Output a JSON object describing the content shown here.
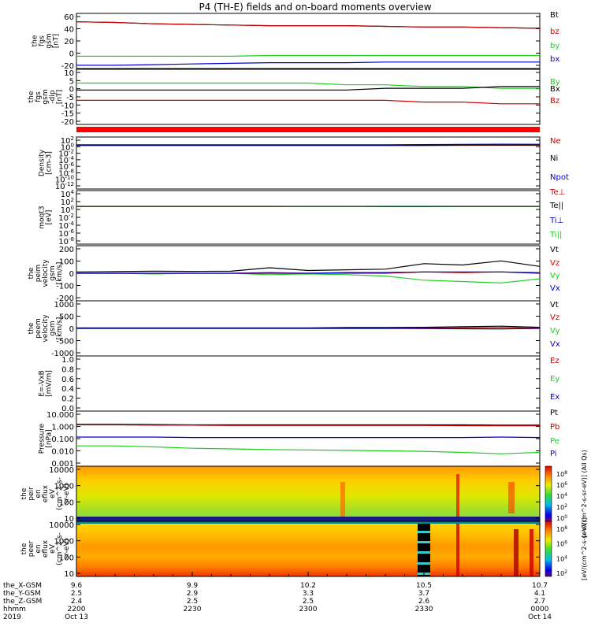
{
  "chart_data": {
    "type": "line",
    "title": "P4 (TH-E) fields and on-board moments overview",
    "panels": [
      {
        "id": "fgs-gsm",
        "ylabel": [
          "the",
          "fgs",
          "gsm",
          "[nT]"
        ],
        "yticks": [
          "60",
          "40",
          "20",
          "0",
          "-20"
        ],
        "ylim": [
          -20,
          65
        ],
        "grid": false,
        "series": [
          {
            "name": "Bt",
            "color": "#000000",
            "values": [
              52,
              51,
              49,
              48,
              47,
              46,
              46,
              46,
              45,
              44,
              44,
              43,
              42
            ]
          },
          {
            "name": "bz",
            "color": "#cc0000",
            "values": [
              52,
              51,
              49,
              48,
              47,
              46,
              46,
              46,
              45,
              44,
              44,
              43,
              42
            ]
          },
          {
            "name": "by",
            "color": "#22cc22",
            "values": [
              -1,
              -1,
              -1,
              -1,
              -1,
              0,
              0,
              0,
              0,
              0,
              0,
              0,
              0
            ]
          },
          {
            "name": "bx",
            "color": "#0000cc",
            "values": [
              -15,
              -15,
              -14,
              -13,
              -12,
              -11,
              -11,
              -11,
              -10,
              -10,
              -10,
              -10,
              -10
            ]
          }
        ]
      },
      {
        "id": "fgs-gsm-deviation",
        "ylabel": [
          "the",
          "fgs",
          "gsm",
          "-dip",
          "[nT]"
        ],
        "yticks": [
          "10",
          "5",
          "0",
          "-5",
          "-10",
          "-15",
          "-20"
        ],
        "ylim": [
          -22,
          10
        ],
        "grid": false,
        "series": [
          {
            "name": "By",
            "color": "#22cc22",
            "values": [
              2,
              2,
              2,
              2,
              2,
              2,
              2,
              1,
              1,
              0,
              0,
              -1,
              -1
            ]
          },
          {
            "name": "Bx",
            "color": "#000000",
            "values": [
              -2,
              -2,
              -2,
              -2,
              -2,
              -2,
              -2,
              -2,
              -1,
              -1,
              -1,
              0,
              0
            ]
          },
          {
            "name": "Bz",
            "color": "#cc0000",
            "values": [
              -8,
              -8,
              -8,
              -8,
              -8,
              -8,
              -8,
              -8,
              -8,
              -9,
              -9,
              -10,
              -10
            ]
          }
        ]
      },
      {
        "id": "density",
        "ylabel": [
          "Density",
          "[cm-3]"
        ],
        "yticks": [
          "10^2",
          "10^0",
          "10^-2",
          "10^-4",
          "10^-6",
          "10^-8",
          "10^-10",
          "10^-12"
        ],
        "ylim": [
          -12,
          2
        ],
        "log": true,
        "grid": false,
        "series": [
          {
            "name": "Ne",
            "color": "#cc0000",
            "values": [
              0.5,
              0.5,
              0.5,
              0.5,
              0.5,
              0.5,
              0.5,
              0.5,
              0.5,
              0.5,
              0.6,
              0.6,
              0.6
            ]
          },
          {
            "name": "Ni",
            "color": "#000000",
            "values": [
              0.6,
              0.6,
              0.6,
              0.6,
              0.6,
              0.6,
              0.6,
              0.6,
              0.6,
              0.6,
              0.7,
              0.7,
              0.7
            ]
          },
          {
            "name": "Npot",
            "color": "#0000cc",
            "values": [
              0.8,
              0.8,
              0.8,
              0.8,
              0.8,
              0.8,
              0.8,
              0.8,
              0.8,
              0.9,
              1.0,
              1.2,
              1.1
            ]
          }
        ]
      },
      {
        "id": "temperature",
        "ylabel": [
          "moqt3",
          "[eV]"
        ],
        "yticks": [
          "10^4",
          "10^2",
          "10^0",
          "10^-2",
          "10^-4",
          "10^-6",
          "10^-8"
        ],
        "ylim": [
          -9,
          4.5
        ],
        "log": true,
        "grid": false,
        "series": [
          {
            "name": "Te⊥",
            "color": "#cc0000",
            "values": [
              3.0,
              3.0,
              3.0,
              3.0,
              3.0,
              3.0,
              3.0,
              3.0,
              3.0,
              3.0,
              3.0,
              3.0,
              3.0
            ]
          },
          {
            "name": "Te||",
            "color": "#000000",
            "values": [
              3.1,
              3.1,
              3.1,
              3.1,
              3.1,
              3.1,
              3.1,
              3.1,
              2.8,
              2.8,
              2.9,
              2.9,
              2.9
            ]
          },
          {
            "name": "Ti⊥",
            "color": "#0000cc",
            "values": [
              3.8,
              3.8,
              3.8,
              3.8,
              3.8,
              3.8,
              3.6,
              3.6,
              3.6,
              3.6,
              3.6,
              3.6,
              3.6
            ]
          },
          {
            "name": "Ti||",
            "color": "#22cc22",
            "values": [
              3.9,
              3.9,
              3.9,
              3.9,
              3.9,
              3.9,
              3.7,
              3.7,
              3.7,
              3.7,
              3.7,
              3.7,
              3.7
            ]
          }
        ]
      },
      {
        "id": "peim-velocity",
        "ylabel": [
          "the",
          "peim",
          "velocity",
          "gsm",
          "[km/s]"
        ],
        "yticks": [
          "200",
          "100",
          "0",
          "-100",
          "-200"
        ],
        "ylim": [
          -200,
          200
        ],
        "grid": false,
        "series": [
          {
            "name": "Vt",
            "color": "#000000",
            "values": [
              10,
              12,
              15,
              14,
              15,
              40,
              20,
              25,
              30,
              70,
              60,
              90,
              50
            ]
          },
          {
            "name": "Vz",
            "color": "#cc0000",
            "values": [
              0,
              0,
              0,
              0,
              0,
              5,
              0,
              0,
              0,
              10,
              5,
              10,
              5
            ]
          },
          {
            "name": "Vy",
            "color": "#22cc22",
            "values": [
              0,
              0,
              -5,
              0,
              0,
              -10,
              -5,
              -10,
              -20,
              -50,
              -60,
              -70,
              -40
            ]
          },
          {
            "name": "Vx",
            "color": "#0000cc",
            "values": [
              0,
              0,
              0,
              0,
              0,
              0,
              0,
              5,
              5,
              10,
              10,
              10,
              0
            ]
          }
        ]
      },
      {
        "id": "peem-velocity",
        "ylabel": [
          "the",
          "peem",
          "velocity",
          "gsm",
          "[km/s]"
        ],
        "yticks": [
          "1000",
          "500",
          "0",
          "-500",
          "-1000"
        ],
        "ylim": [
          -1000,
          1000
        ],
        "grid": false,
        "series": [
          {
            "name": "Vt",
            "color": "#000000",
            "values": [
              20,
              20,
              20,
              20,
              20,
              20,
              20,
              30,
              30,
              40,
              60,
              80,
              40
            ]
          },
          {
            "name": "Vz",
            "color": "#cc0000",
            "values": [
              0,
              0,
              0,
              0,
              0,
              0,
              0,
              0,
              0,
              10,
              20,
              30,
              10
            ]
          },
          {
            "name": "Vy",
            "color": "#22cc22",
            "values": [
              0,
              0,
              0,
              0,
              0,
              0,
              0,
              0,
              0,
              -10,
              -20,
              -20,
              0
            ]
          },
          {
            "name": "Vx",
            "color": "#0000cc",
            "values": [
              0,
              0,
              0,
              0,
              0,
              0,
              0,
              0,
              0,
              0,
              -10,
              -20,
              0
            ]
          }
        ]
      },
      {
        "id": "electric-field",
        "ylabel": [
          "E=-VxB",
          "[mV/m]"
        ],
        "yticks": [
          "1.0",
          "0.8",
          "0.6",
          "0.4",
          "0.2",
          "0.0"
        ],
        "ylim": [
          0,
          1
        ],
        "grid": false,
        "series": [
          {
            "name": "Ez",
            "color": "#cc0000",
            "values": []
          },
          {
            "name": "Ey",
            "color": "#22cc22",
            "values": []
          },
          {
            "name": "Ex",
            "color": "#0000cc",
            "values": []
          }
        ]
      },
      {
        "id": "pressure",
        "ylabel": [
          "Pressure",
          "[nPa]"
        ],
        "yticks": [
          "10.000",
          "1.000",
          "0.100",
          "0.010",
          "0.001"
        ],
        "ylim": [
          -3,
          1
        ],
        "log": true,
        "grid": false,
        "series": [
          {
            "name": "Pt",
            "color": "#000000",
            "values": [
              1.1,
              1.1,
              1.05,
              1.0,
              1.0,
              1.0,
              1.0,
              1.0,
              1.0,
              1.0,
              1.0,
              0.95,
              0.95
            ]
          },
          {
            "name": "Pb",
            "color": "#cc0000",
            "values": [
              1.0,
              1.0,
              0.95,
              0.95,
              0.9,
              0.9,
              0.9,
              0.9,
              0.9,
              0.9,
              0.88,
              0.85,
              0.85
            ]
          },
          {
            "name": "Pe",
            "color": "#22cc22",
            "values": [
              0.03,
              0.03,
              0.025,
              0.02,
              0.018,
              0.016,
              0.015,
              0.014,
              0.013,
              0.012,
              0.01,
              0.008,
              0.01
            ]
          },
          {
            "name": "Pi",
            "color": "#0000cc",
            "values": [
              0.13,
              0.13,
              0.13,
              0.12,
              0.12,
              0.12,
              0.12,
              0.12,
              0.12,
              0.12,
              0.12,
              0.13,
              0.12
            ]
          }
        ]
      },
      {
        "id": "peir-spectrogram",
        "type": "heatmap",
        "ylabel": [
          "the",
          "peir",
          "en",
          "eflux",
          "eV",
          "(cm^2-s-",
          "sr-eV)"
        ],
        "yticks": [
          "10000",
          "1000",
          "100",
          "10"
        ],
        "ylim": [
          1,
          4.5
        ],
        "log": true,
        "colorbar_label": "[eV/(cm^2-s-sr-eV)] (All Qs)",
        "colorbar_ticks": [
          "10^8",
          "10^6",
          "10^4",
          "10^2",
          "10^0"
        ]
      },
      {
        "id": "peer-spectrogram",
        "type": "heatmap",
        "ylabel": [
          "the",
          "peer",
          "en",
          "eflux",
          "eV",
          "(cm^2-s-",
          "sr-eV)"
        ],
        "yticks": [
          "10000",
          "1000",
          "100",
          "10"
        ],
        "ylim": [
          1,
          4.5
        ],
        "log": true,
        "colorbar_label": "[eV/(cm^2-s-sr-eV)]",
        "colorbar_ticks": [
          "10^8",
          "10^6",
          "10^4",
          "10^2"
        ]
      }
    ],
    "x_axis": {
      "row_labels": [
        "the_X-GSM",
        "the_Y-GSM",
        "the_Z-GSM",
        "hhmm",
        "2019"
      ],
      "ticks": [
        {
          "t": 0,
          "x": "9.6",
          "y": "2.5",
          "z": "2.4",
          "hhmm": "2200",
          "date": "Oct 13"
        },
        {
          "t": 30,
          "x": "9.9",
          "y": "2.9",
          "z": "2.5",
          "hhmm": "2230",
          "date": ""
        },
        {
          "t": 60,
          "x": "10.2",
          "y": "3.3",
          "z": "2.5",
          "hhmm": "2300",
          "date": ""
        },
        {
          "t": 90,
          "x": "10.5",
          "y": "3.7",
          "z": "2.6",
          "hhmm": "2330",
          "date": ""
        },
        {
          "t": 120,
          "x": "10.7",
          "y": "4.1",
          "z": "2.7",
          "hhmm": "0000",
          "date": "Oct 14"
        }
      ],
      "xlim": [
        0,
        120
      ]
    }
  }
}
